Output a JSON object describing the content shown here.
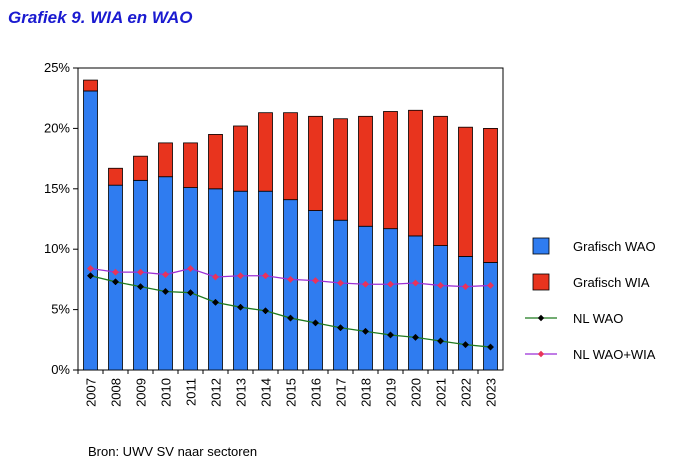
{
  "title": "Grafiek 9. WIA en WAO",
  "source": "Bron: UWV SV naar sectoren",
  "colors": {
    "wao": "#2f7cf0",
    "wia": "#e8341e",
    "nl_wao": "#1f7a1f",
    "nl_wao_wia": "#9b2fd6",
    "marker_wao": "#000000",
    "marker_wao_wia": "#e8345a"
  },
  "chart_data": {
    "type": "bar",
    "stacked": true,
    "title": "Grafiek 9. WIA en WAO",
    "xlabel": "",
    "ylabel": "",
    "ylim": [
      0,
      25
    ],
    "y_ticks": [
      "0%",
      "5%",
      "10%",
      "15%",
      "20%",
      "25%"
    ],
    "y_tick_values": [
      0,
      5,
      10,
      15,
      20,
      25
    ],
    "categories": [
      "2007",
      "2008",
      "2009",
      "2010",
      "2011",
      "2012",
      "2013",
      "2014",
      "2015",
      "2016",
      "2017",
      "2018",
      "2019",
      "2020",
      "2021",
      "2022",
      "2023"
    ],
    "series": [
      {
        "name": "Grafisch WAO",
        "kind": "bar",
        "values": [
          23.1,
          15.3,
          15.7,
          16.0,
          15.1,
          15.0,
          14.8,
          14.8,
          14.1,
          13.2,
          12.4,
          11.9,
          11.7,
          11.1,
          10.3,
          9.4,
          8.9
        ]
      },
      {
        "name": "Grafisch WIA",
        "kind": "bar",
        "values": [
          0.9,
          1.4,
          2.0,
          2.8,
          3.7,
          4.5,
          5.4,
          6.5,
          7.2,
          7.8,
          8.4,
          9.1,
          9.7,
          10.4,
          10.7,
          10.7,
          11.1
        ]
      },
      {
        "name": "NL WAO",
        "kind": "line",
        "values": [
          7.8,
          7.3,
          6.9,
          6.5,
          6.4,
          5.6,
          5.2,
          4.9,
          4.3,
          3.9,
          3.5,
          3.2,
          2.9,
          2.7,
          2.4,
          2.1,
          1.9
        ]
      },
      {
        "name": "NL WAO+WIA",
        "kind": "line",
        "values": [
          8.4,
          8.1,
          8.1,
          7.9,
          8.4,
          7.7,
          7.8,
          7.8,
          7.5,
          7.4,
          7.2,
          7.1,
          7.1,
          7.2,
          7.0,
          6.9,
          7.0
        ]
      }
    ],
    "legend": [
      "Grafisch WAO",
      "Grafisch WIA",
      "NL WAO",
      "NL WAO+WIA"
    ],
    "legend_position": "right",
    "grid": false
  }
}
